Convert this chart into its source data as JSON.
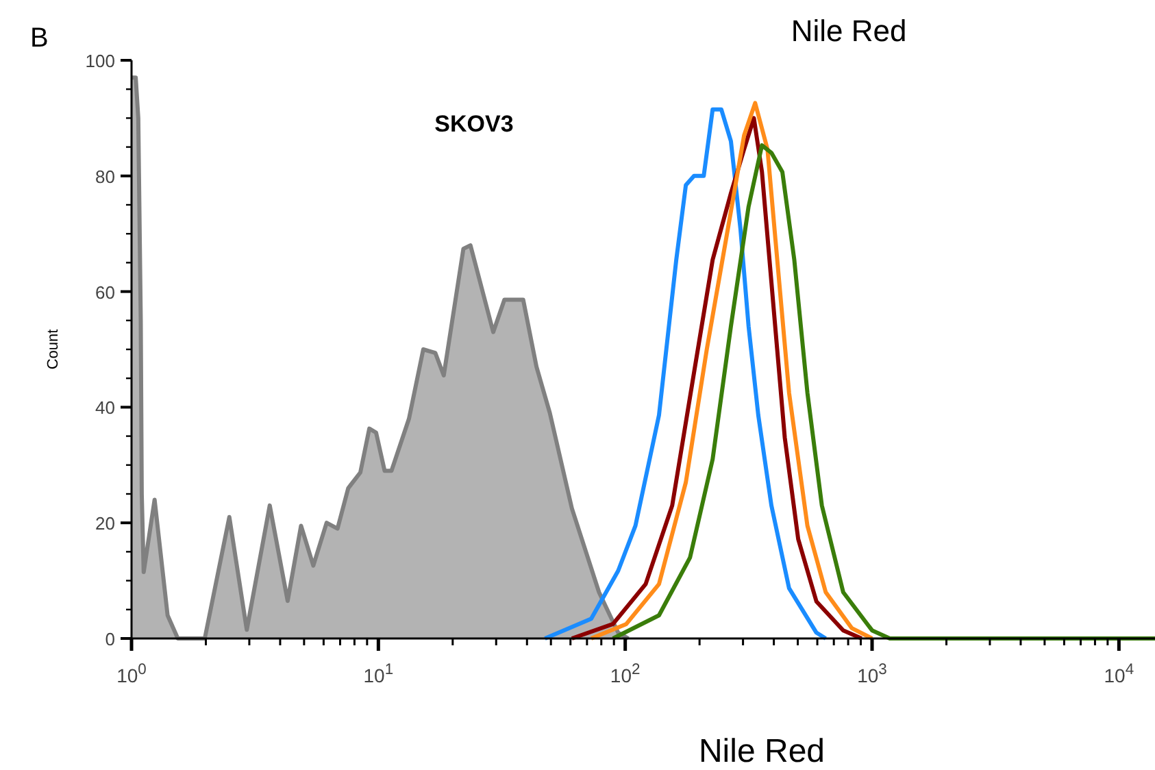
{
  "chart_data": {
    "type": "line",
    "title": "Nile Red",
    "xlabel": "Nile Red",
    "ylabel": "Count",
    "annotations": [
      "B",
      "SKOV3"
    ],
    "log": "x",
    "grid": false,
    "marker": "none",
    "line_style": "solid",
    "xlim": [
      1,
      14000
    ],
    "ylim": [
      0,
      100
    ],
    "xticks": [
      {
        "value": 1,
        "label": "10$^{0}$"
      },
      {
        "value": 2,
        "label": null
      },
      {
        "value": 3,
        "label": null
      },
      {
        "value": 4,
        "label": null
      },
      {
        "value": 5,
        "label": null
      },
      {
        "value": 6,
        "label": null
      },
      {
        "value": 7,
        "label": null
      },
      {
        "value": 8,
        "label": null
      },
      {
        "value": 9,
        "label": null
      },
      {
        "value": 10,
        "label": "10$^{1}$"
      },
      {
        "value": 20,
        "label": null
      },
      {
        "value": 30,
        "label": null
      },
      {
        "value": 40,
        "label": null
      },
      {
        "value": 50,
        "label": null
      },
      {
        "value": 60,
        "label": null
      },
      {
        "value": 70,
        "label": null
      },
      {
        "value": 80,
        "label": null
      },
      {
        "value": 90,
        "label": null
      },
      {
        "value": 100,
        "label": "10$^{2}$"
      },
      {
        "value": 200,
        "label": null
      },
      {
        "value": 300,
        "label": null
      },
      {
        "value": 400,
        "label": null
      },
      {
        "value": 500,
        "label": null
      },
      {
        "value": 600,
        "label": null
      },
      {
        "value": 700,
        "label": null
      },
      {
        "value": 800,
        "label": null
      },
      {
        "value": 900,
        "label": null
      },
      {
        "value": 1000,
        "label": "10$^{3}$"
      },
      {
        "value": 2000,
        "label": null
      },
      {
        "value": 3000,
        "label": null
      },
      {
        "value": 4000,
        "label": null
      },
      {
        "value": 5000,
        "label": null
      },
      {
        "value": 6000,
        "label": null
      },
      {
        "value": 7000,
        "label": null
      },
      {
        "value": 8000,
        "label": null
      },
      {
        "value": 9000,
        "label": null
      },
      {
        "value": 10000,
        "label": "10$^{4}$"
      }
    ],
    "yticks": [
      0,
      {
        "value": 5,
        "label": null
      },
      {
        "value": 10,
        "label": null
      },
      {
        "value": 15,
        "label": null
      },
      20,
      {
        "value": 25,
        "label": null
      },
      {
        "value": 30,
        "label": null
      },
      {
        "value": 35,
        "label": null
      },
      40,
      {
        "value": 45,
        "label": null
      },
      {
        "value": 50,
        "label": null
      },
      {
        "value": 55,
        "label": null
      },
      60,
      {
        "value": 65,
        "label": null
      },
      {
        "value": 70,
        "label": null
      },
      {
        "value": 75,
        "label": null
      },
      80,
      {
        "value": 85,
        "label": null
      },
      {
        "value": 90,
        "label": null
      },
      {
        "value": 95,
        "label": null
      },
      100
    ],
    "series": [
      {
        "type": "area",
        "color": "#808080",
        "x": [
          1,
          1.04,
          1.065,
          1.09,
          1.1,
          1.12,
          1.24,
          1.4,
          1.54,
          1.98,
          2.49,
          2.93,
          3.63,
          4.29,
          4.86,
          5.45,
          6.17,
          6.83,
          7.55,
          8.45,
          9.19,
          9.79,
          10.6,
          11.3,
          13.3,
          15.2,
          17,
          18.4,
          22.1,
          23.6,
          29.2,
          32.4,
          38.6,
          43.7,
          49.5,
          60.8,
          78.3,
          93.6,
          103
        ],
        "values": [
          97,
          97,
          90,
          55,
          25,
          11.5,
          24,
          4,
          0,
          0,
          21,
          1.5,
          23,
          6.5,
          19.5,
          12.6,
          20,
          19,
          26,
          28.7,
          36.3,
          35.6,
          29,
          29,
          38,
          50,
          49.4,
          45.5,
          67.4,
          68,
          53,
          58.6,
          58.6,
          47,
          39,
          22.5,
          8,
          1,
          0
        ]
      },
      {
        "color": "#1a8cff",
        "x": [
          47.3,
          72.8,
          93.6,
          110,
          137,
          161,
          176,
          190,
          208,
          226,
          245,
          268,
          293,
          316,
          346,
          391,
          461,
          595,
          649
        ],
        "values": [
          0,
          3.4,
          11.7,
          19.5,
          38.6,
          65.5,
          78.4,
          80,
          80,
          91.5,
          91.5,
          86,
          70.8,
          54,
          38.6,
          23,
          8.7,
          1,
          0
        ]
      },
      {
        "color": "#8b0000",
        "x": [
          60.8,
          89.2,
          121,
          155,
          190,
          226,
          268,
          303,
          332,
          358,
          391,
          443,
          502,
          595,
          764,
          907
        ],
        "values": [
          0,
          2.5,
          9.4,
          23,
          46,
          65.5,
          77,
          84.6,
          90,
          80.7,
          61.6,
          34.7,
          17.2,
          6.4,
          1.4,
          0
        ]
      },
      {
        "color": "#ff8c1a",
        "x": [
          72.8,
          101,
          137,
          176,
          214,
          256,
          303,
          336,
          377,
          406,
          461,
          547,
          649,
          827,
          1000
        ],
        "values": [
          0,
          2.5,
          9.4,
          27,
          50,
          69,
          87,
          92.6,
          84.6,
          69,
          42.5,
          19.5,
          8,
          1.8,
          0
        ]
      },
      {
        "color": "#3a7d0a",
        "x": [
          89.2,
          137,
          183,
          226,
          268,
          316,
          358,
          391,
          433,
          484,
          547,
          626,
          764,
          1000,
          1180,
          14000
        ],
        "values": [
          0,
          4,
          14,
          31,
          54,
          74.7,
          85.3,
          84,
          80.7,
          65.5,
          42.5,
          23,
          8,
          1.4,
          0,
          0
        ]
      }
    ]
  }
}
